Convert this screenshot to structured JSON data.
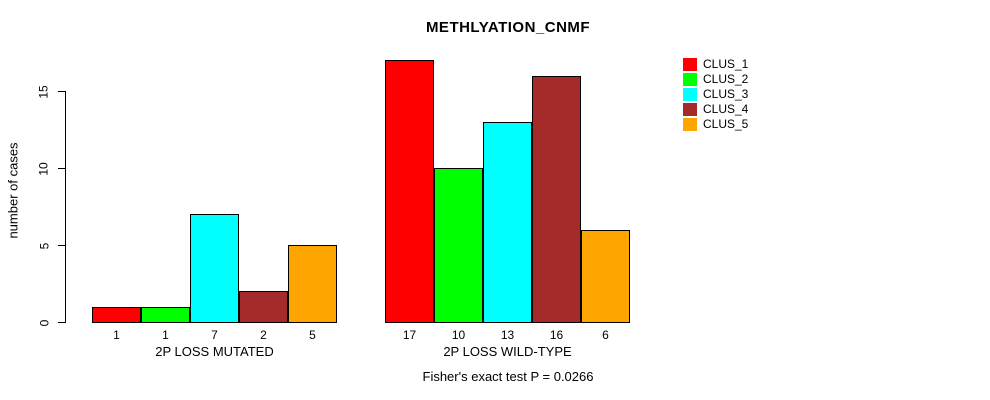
{
  "title": "METHLYATION_CNMF",
  "ylabel": "number of cases",
  "caption": "Fisher's exact test P = 0.0266",
  "chart_data": {
    "type": "bar",
    "title": "METHLYATION_CNMF",
    "xlabel": "",
    "ylabel": "number of cases",
    "categories": [
      "2P LOSS MUTATED",
      "2P LOSS WILD-TYPE"
    ],
    "series": [
      {
        "name": "CLUS_1",
        "color": "#ff0000",
        "values": [
          1,
          17
        ]
      },
      {
        "name": "CLUS_2",
        "color": "#00ff00",
        "values": [
          1,
          10
        ]
      },
      {
        "name": "CLUS_3",
        "color": "#00ffff",
        "values": [
          7,
          13
        ]
      },
      {
        "name": "CLUS_4",
        "color": "#a52a2a",
        "values": [
          2,
          16
        ]
      },
      {
        "name": "CLUS_5",
        "color": "#ffa500",
        "values": [
          5,
          6
        ]
      }
    ],
    "bar_value_labels": [
      [
        "1",
        "1",
        "7",
        "2",
        "5"
      ],
      [
        "17",
        "10",
        "13",
        "16",
        "6"
      ]
    ],
    "yticks": [
      0,
      5,
      10,
      15
    ],
    "ylim": [
      0,
      17
    ],
    "grid": false,
    "legend_position": "right",
    "legend_entries": [
      "CLUS_1",
      "CLUS_2",
      "CLUS_3",
      "CLUS_4",
      "CLUS_5"
    ],
    "annotation": "Fisher's exact test P = 0.0266",
    "bar_border_color": "#000000",
    "background_color": "#ffffff"
  }
}
